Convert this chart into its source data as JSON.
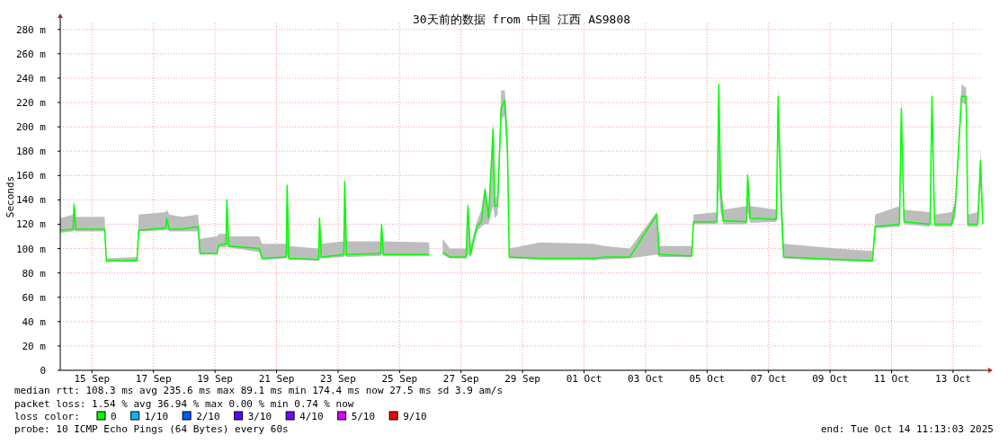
{
  "chart_data": {
    "type": "line",
    "title": "30天前的数据 from 中国 江西 AS9808",
    "ylabel": "Seconds",
    "x": [
      "2025-09-14T11:13",
      "2025-09-14T21:16",
      "2025-09-14T21:58",
      "2025-09-14T23:22",
      "2025-09-15T21:50",
      "2025-09-15T23:14",
      "2025-09-16T23:05",
      "2025-09-17T00:29",
      "2025-09-17T21:33",
      "2025-09-17T22:15",
      "2025-09-18T00:21",
      "2025-09-18T10:11",
      "2025-09-18T22:49",
      "2025-09-19T00:13",
      "2025-09-19T13:33",
      "2025-09-19T14:57",
      "2025-09-19T20:34",
      "2025-09-19T21:16",
      "2025-09-19T22:40",
      "2025-09-20T22:32",
      "2025-09-21T00:38",
      "2025-09-21T19:35",
      "2025-09-21T20:17",
      "2025-09-21T21:41",
      "2025-09-22T20:51",
      "2025-09-22T21:34",
      "2025-09-22T22:58",
      "2025-09-23T16:30",
      "2025-09-23T17:13",
      "2025-09-23T18:37",
      "2025-09-24T21:17",
      "2025-09-24T21:59",
      "2025-09-24T23:23",
      "2025-09-26T11:11",
      "2025-09-26T11:53",
      "2025-09-26T21:00",
      "2025-09-26T21:42",
      "2025-09-27T03:19",
      "2025-09-27T15:57",
      "2025-09-27T17:21",
      "2025-09-27T19:28",
      "2025-09-28T00:22",
      "2025-09-28T03:53",
      "2025-09-28T06:41",
      "2025-09-28T09:29",
      "2025-09-28T13:00",
      "2025-09-28T14:25",
      "2025-09-28T16:31",
      "2025-09-28T19:19",
      "2025-09-28T22:08",
      "2025-09-29T00:14",
      "2025-09-29T01:38",
      "2025-09-30T01:30",
      "2025-10-01T19:36",
      "2025-10-02T04:02",
      "2025-10-02T23:41",
      "2025-10-03T20:44",
      "2025-10-03T22:50",
      "2025-10-05T00:06",
      "2025-10-05T01:30",
      "2025-10-05T19:45",
      "2025-10-05T21:09",
      "2025-10-05T22:34",
      "2025-10-06T00:40",
      "2025-10-06T18:55",
      "2025-10-06T19:37",
      "2025-10-06T21:43",
      "2025-10-07T18:04",
      "2025-10-07T19:28",
      "2025-10-07T21:35",
      "2025-10-07T23:41",
      "2025-10-09T17:05",
      "2025-10-10T21:10",
      "2025-10-10T23:16",
      "2025-10-11T18:13",
      "2025-10-11T19:37",
      "2025-10-11T21:44",
      "2025-10-12T18:05",
      "2025-10-12T19:29",
      "2025-10-12T21:35",
      "2025-10-13T10:55",
      "2025-10-13T13:44",
      "2025-10-13T18:38",
      "2025-10-13T22:09",
      "2025-10-13T23:33",
      "2025-10-14T07:16",
      "2025-10-14T09:23",
      "2025-10-14T11:13"
    ],
    "series": [
      {
        "name": "0",
        "color": "#00ff00",
        "values": [
          115,
          116,
          136,
          116,
          116,
          90,
          90,
          115,
          117,
          125,
          116,
          116,
          118,
          96,
          96,
          103,
          104,
          140,
          102,
          100,
          92,
          93,
          152,
          92,
          91,
          125,
          93,
          95,
          155,
          95,
          96,
          120,
          95,
          95,
          null,
          null,
          97,
          93,
          93,
          135,
          95,
          118,
          122,
          148,
          125,
          198,
          135,
          135,
          215,
          222,
          180,
          93,
          92,
          92,
          93,
          93,
          128,
          95,
          94,
          122,
          122,
          235,
          150,
          123,
          122,
          160,
          125,
          124,
          225,
          150,
          93,
          91,
          90,
          118,
          120,
          215,
          122,
          120,
          225,
          120,
          120,
          135,
          225,
          225,
          120,
          120,
          172,
          120
        ],
        "lower": [
          113,
          114,
          115,
          114,
          114,
          89,
          89,
          114,
          115,
          116,
          114,
          114,
          114,
          95,
          95,
          101,
          101,
          103,
          101,
          97,
          91,
          92,
          95,
          91,
          90,
          92,
          92,
          93,
          95,
          93,
          94,
          96,
          94,
          94,
          null,
          null,
          95,
          92,
          92,
          95,
          93,
          114,
          118,
          120,
          120,
          135,
          125,
          128,
          205,
          210,
          170,
          92,
          91,
          91,
          91,
          92,
          95,
          93,
          93,
          120,
          120,
          150,
          130,
          120,
          120,
          130,
          121,
          122,
          190,
          125,
          92,
          90,
          89,
          117,
          118,
          200,
          120,
          118,
          215,
          118,
          118,
          125,
          220,
          218,
          118,
          118,
          150,
          118
        ],
        "upper": [
          125,
          128,
          140,
          126,
          126,
          92,
          93,
          128,
          130,
          132,
          128,
          126,
          128,
          108,
          110,
          112,
          112,
          145,
          110,
          110,
          104,
          104,
          155,
          102,
          100,
          128,
          104,
          106,
          157,
          106,
          106,
          122,
          106,
          105,
          null,
          null,
          108,
          100,
          100,
          140,
          102,
          122,
          132,
          152,
          135,
          205,
          140,
          145,
          230,
          230,
          200,
          100,
          105,
          104,
          102,
          100,
          130,
          102,
          102,
          128,
          130,
          240,
          160,
          132,
          135,
          165,
          135,
          132,
          235,
          160,
          104,
          100,
          98,
          128,
          135,
          225,
          132,
          130,
          232,
          128,
          130,
          140,
          235,
          232,
          128,
          130,
          180,
          130
        ]
      },
      {
        "name": "1/10",
        "color": "#00b8ff",
        "values": [
          null,
          null,
          null,
          null,
          null,
          null,
          null,
          null,
          null,
          null,
          null,
          null,
          null,
          null,
          null,
          null,
          null,
          null,
          null,
          null,
          null,
          null,
          null,
          null,
          null,
          null,
          null,
          null,
          null,
          null,
          null,
          null,
          null,
          null,
          null,
          null,
          null,
          null,
          null,
          null,
          null,
          null,
          null,
          null,
          null,
          null,
          null,
          null,
          null,
          null,
          null,
          null,
          null,
          null,
          null,
          null,
          null,
          null,
          null,
          null,
          null,
          null,
          null,
          null,
          null,
          null,
          null,
          null,
          null,
          null,
          null,
          null,
          null,
          null,
          null,
          null,
          null,
          null,
          null,
          null,
          null,
          null,
          null,
          null,
          null,
          null,
          null,
          null
        ]
      },
      {
        "name": "2/10",
        "color": "#0059ff",
        "values": [
          null,
          null,
          null,
          null,
          null,
          null,
          null,
          null,
          null,
          null,
          null,
          null,
          null,
          null,
          null,
          null,
          null,
          null,
          null,
          null,
          null,
          null,
          null,
          null,
          null,
          null,
          null,
          null,
          null,
          null,
          null,
          null,
          null,
          null,
          null,
          null,
          null,
          null,
          null,
          null,
          null,
          null,
          null,
          null,
          null,
          null,
          null,
          null,
          null,
          null,
          null,
          null,
          null,
          null,
          null,
          null,
          null,
          null,
          null,
          null,
          null,
          null,
          null,
          null,
          null,
          null,
          null,
          null,
          null,
          null,
          null,
          null,
          null,
          null,
          null,
          null,
          null,
          null,
          null,
          null,
          null,
          null,
          null,
          null,
          null,
          null,
          null,
          null
        ]
      },
      {
        "name": "3/10",
        "color": "#5e00ff",
        "values": [
          null,
          null,
          null,
          null,
          null,
          null,
          null,
          null,
          null,
          null,
          null,
          null,
          null,
          null,
          null,
          null,
          null,
          null,
          null,
          null,
          null,
          null,
          null,
          null,
          null,
          null,
          null,
          null,
          null,
          null,
          null,
          null,
          null,
          null,
          null,
          null,
          null,
          null,
          null,
          null,
          null,
          null,
          null,
          null,
          null,
          null,
          null,
          null,
          null,
          null,
          null,
          null,
          null,
          null,
          null,
          null,
          null,
          null,
          null,
          null,
          null,
          null,
          null,
          null,
          null,
          null,
          null,
          null,
          null,
          null,
          null,
          null,
          null,
          null,
          null,
          null,
          null,
          null,
          null,
          null,
          null,
          null,
          null,
          null,
          null,
          null,
          null,
          null
        ]
      },
      {
        "name": "4/10",
        "color": "#7e00ff",
        "values": [
          null,
          null,
          null,
          null,
          null,
          null,
          null,
          null,
          null,
          null,
          null,
          null,
          null,
          null,
          null,
          null,
          null,
          null,
          null,
          null,
          null,
          null,
          null,
          null,
          null,
          null,
          null,
          null,
          null,
          null,
          null,
          null,
          null,
          null,
          null,
          null,
          null,
          null,
          null,
          null,
          null,
          null,
          null,
          null,
          null,
          null,
          null,
          null,
          null,
          null,
          null,
          null,
          null,
          null,
          null,
          null,
          null,
          null,
          null,
          null,
          null,
          null,
          null,
          null,
          null,
          null,
          null,
          null,
          null,
          null,
          null,
          null,
          null,
          null,
          null,
          null,
          null,
          null,
          null,
          null,
          null,
          null,
          null,
          null,
          null,
          null,
          null,
          null
        ]
      },
      {
        "name": "5/10",
        "color": "#dd00ff",
        "values": [
          null,
          null,
          null,
          null,
          null,
          null,
          null,
          null,
          null,
          null,
          null,
          null,
          null,
          null,
          null,
          null,
          null,
          null,
          null,
          null,
          null,
          null,
          null,
          null,
          null,
          null,
          null,
          null,
          null,
          null,
          null,
          null,
          null,
          null,
          null,
          null,
          null,
          null,
          null,
          null,
          null,
          null,
          null,
          null,
          null,
          null,
          null,
          null,
          null,
          null,
          null,
          null,
          null,
          null,
          null,
          null,
          null,
          null,
          null,
          null,
          null,
          null,
          null,
          null,
          null,
          null,
          null,
          null,
          null,
          null,
          null,
          null,
          null,
          null,
          null,
          null,
          null,
          null,
          null,
          null,
          null,
          null,
          null,
          null,
          null,
          null,
          null,
          null
        ]
      },
      {
        "name": "9/10",
        "color": "#ff0000",
        "values": [
          null,
          null,
          null,
          null,
          null,
          null,
          null,
          null,
          null,
          null,
          null,
          null,
          null,
          null,
          null,
          null,
          null,
          null,
          null,
          null,
          null,
          null,
          null,
          null,
          null,
          null,
          null,
          null,
          null,
          null,
          null,
          null,
          null,
          null,
          null,
          null,
          null,
          null,
          null,
          null,
          null,
          null,
          null,
          null,
          null,
          null,
          null,
          null,
          null,
          null,
          null,
          null,
          null,
          null,
          null,
          null,
          null,
          null,
          null,
          null,
          null,
          null,
          null,
          null,
          null,
          null,
          null,
          null,
          null,
          null,
          null,
          null,
          null,
          null,
          null,
          null,
          null,
          null,
          null,
          null,
          null,
          null,
          null,
          null,
          null,
          null,
          null,
          null
        ]
      }
    ],
    "legend": "bottom",
    "legend_title": "loss color:",
    "xlim": [
      "2025-09-14T11:13",
      "2025-10-14T11:13"
    ],
    "xticks": [
      {
        "value": "2025-09-15T12:00",
        "label": "15 Sep"
      },
      {
        "value": "2025-09-17T12:00",
        "label": "17 Sep"
      },
      {
        "value": "2025-09-19T12:00",
        "label": "19 Sep"
      },
      {
        "value": "2025-09-21T12:00",
        "label": "21 Sep"
      },
      {
        "value": "2025-09-23T12:00",
        "label": "23 Sep"
      },
      {
        "value": "2025-09-25T12:00",
        "label": "25 Sep"
      },
      {
        "value": "2025-09-27T12:00",
        "label": "27 Sep"
      },
      {
        "value": "2025-09-29T12:00",
        "label": "29 Sep"
      },
      {
        "value": "2025-10-01T12:00",
        "label": "01 Oct"
      },
      {
        "value": "2025-10-03T12:00",
        "label": "03 Oct"
      },
      {
        "value": "2025-10-05T12:00",
        "label": "05 Oct"
      },
      {
        "value": "2025-10-07T12:00",
        "label": "07 Oct"
      },
      {
        "value": "2025-10-09T12:00",
        "label": "09 Oct"
      },
      {
        "value": "2025-10-11T12:00",
        "label": "11 Oct"
      },
      {
        "value": "2025-10-13T12:00",
        "label": "13 Oct"
      }
    ],
    "ylim": [
      0,
      285
    ],
    "yticks": [
      0,
      {
        "value": 20,
        "label": "20 m"
      },
      {
        "value": 40,
        "label": "40 m"
      },
      {
        "value": 60,
        "label": "60 m"
      },
      {
        "value": 80,
        "label": "80 m"
      },
      {
        "value": 100,
        "label": "100 m"
      },
      {
        "value": 120,
        "label": "120 m"
      },
      {
        "value": 140,
        "label": "140 m"
      },
      {
        "value": 160,
        "label": "160 m"
      },
      {
        "value": 180,
        "label": "180 m"
      },
      {
        "value": 200,
        "label": "200 m"
      },
      {
        "value": 220,
        "label": "220 m"
      },
      {
        "value": 240,
        "label": "240 m"
      },
      {
        "value": 260,
        "label": "260 m"
      },
      {
        "value": 280,
        "label": "280 m"
      }
    ],
    "grid": true,
    "annotations": [
      "median rtt:  108.3 ms avg  235.6 ms max  89.1 ms min  174.4 ms now  27.5 ms sd  3.9   am/s",
      "packet loss: 1.54 % avg  36.94 % max  0.00 % min  0.74 % now",
      "probe:       10 ICMP Echo Pings (64 Bytes) every 60s",
      "end: Tue Oct 14 11:13:03 2025"
    ]
  }
}
